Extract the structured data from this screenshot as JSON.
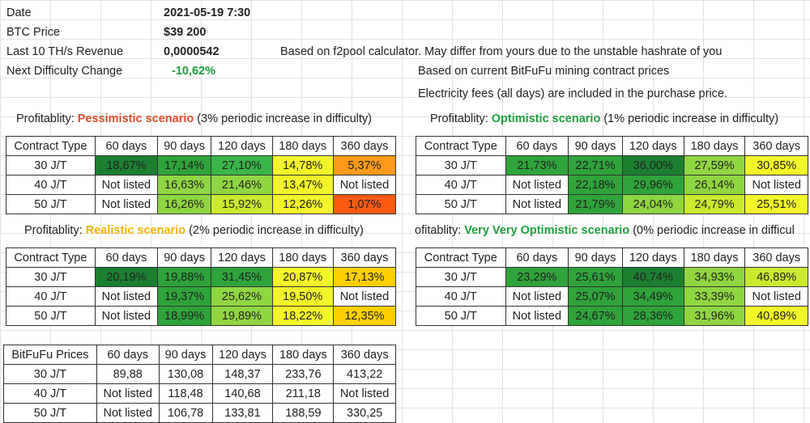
{
  "summary": {
    "date_label": "Date",
    "date_value": "2021-05-19 7:30",
    "btc_label": "BTC Price",
    "btc_value": "$39 200",
    "rev_label": "Last 10 TH/s Revenue",
    "rev_value": "0,0000542",
    "diff_label": "Next Difficulty Change",
    "diff_value": "-10,62%",
    "note1": "Based on f2pool calculator. May differ from yours due to the unstable hashrate of you",
    "note2": "Based on current BitFuFu mining contract prices",
    "note3": "Electricity fees (all days) are included in the purchase price."
  },
  "colors": {
    "dark_green": "#1b7f2f",
    "mid_green": "#2fa33c",
    "green": "#39b54a",
    "light_green": "#8fd641",
    "lime": "#c9ea2f",
    "yellow": "#f3f52a",
    "yellow_orange": "#ffd000",
    "orange": "#ff9a1a",
    "red_orange": "#ff5a14"
  },
  "columns": [
    "Contract Type",
    "60 days",
    "90 days",
    "120 days",
    "180 days",
    "360 days"
  ],
  "price_columns": [
    "BitFuFu Prices",
    "60 days",
    "90 days",
    "120 days",
    "180 days",
    "360 days"
  ],
  "pessimistic": {
    "prefix": "Profitablity: ",
    "name": "Pessimistic scenario",
    "suffix": " (3% periodic increase in difficulty)",
    "rows": [
      {
        "label": "30 J/T",
        "cells": [
          [
            "18,67%",
            "dark_green"
          ],
          [
            "17,14%",
            "mid_green"
          ],
          [
            "27,10%",
            "green"
          ],
          [
            "14,78%",
            "yellow"
          ],
          [
            "5,37%",
            "orange"
          ]
        ]
      },
      {
        "label": "40 J/T",
        "cells": [
          [
            "Not listed",
            "none"
          ],
          [
            "16,63%",
            "light_green"
          ],
          [
            "21,46%",
            "light_green"
          ],
          [
            "13,47%",
            "yellow"
          ],
          [
            "Not listed",
            "none"
          ]
        ]
      },
      {
        "label": "50 J/T",
        "cells": [
          [
            "Not listed",
            "none"
          ],
          [
            "16,26%",
            "light_green"
          ],
          [
            "15,92%",
            "lime"
          ],
          [
            "12,26%",
            "yellow"
          ],
          [
            "1,07%",
            "red_orange"
          ]
        ]
      }
    ]
  },
  "optimistic": {
    "prefix": "Profitablity: ",
    "name": "Optimistic scenario",
    "suffix": " (1% periodic increase in difficulty)",
    "rows": [
      {
        "label": "30 J/T",
        "cells": [
          [
            "21,73%",
            "mid_green"
          ],
          [
            "22,71%",
            "mid_green"
          ],
          [
            "36,00%",
            "dark_green"
          ],
          [
            "27,59%",
            "light_green"
          ],
          [
            "30,85%",
            "yellow"
          ]
        ]
      },
      {
        "label": "40 J/T",
        "cells": [
          [
            "Not listed",
            "none"
          ],
          [
            "22,18%",
            "mid_green"
          ],
          [
            "29,96%",
            "mid_green"
          ],
          [
            "26,14%",
            "light_green"
          ],
          [
            "Not listed",
            "none"
          ]
        ]
      },
      {
        "label": "50 J/T",
        "cells": [
          [
            "Not listed",
            "none"
          ],
          [
            "21,79%",
            "mid_green"
          ],
          [
            "24,04%",
            "light_green"
          ],
          [
            "24,79%",
            "lime"
          ],
          [
            "25,51%",
            "yellow"
          ]
        ]
      }
    ]
  },
  "realistic": {
    "prefix": "Profitablity: ",
    "name": "Realistic scenario",
    "suffix": " (2% periodic increase in difficulty)",
    "rows": [
      {
        "label": "30 J/T",
        "cells": [
          [
            "20,19%",
            "dark_green"
          ],
          [
            "19,88%",
            "mid_green"
          ],
          [
            "31,45%",
            "mid_green"
          ],
          [
            "20,87%",
            "yellow"
          ],
          [
            "17,13%",
            "yellow_orange"
          ]
        ]
      },
      {
        "label": "40 J/T",
        "cells": [
          [
            "Not listed",
            "none"
          ],
          [
            "19,37%",
            "mid_green"
          ],
          [
            "25,62%",
            "light_green"
          ],
          [
            "19,50%",
            "yellow"
          ],
          [
            "Not listed",
            "none"
          ]
        ]
      },
      {
        "label": "50 J/T",
        "cells": [
          [
            "Not listed",
            "none"
          ],
          [
            "18,99%",
            "mid_green"
          ],
          [
            "19,89%",
            "light_green"
          ],
          [
            "18,22%",
            "yellow"
          ],
          [
            "12,35%",
            "yellow_orange"
          ]
        ]
      }
    ]
  },
  "veryoptimistic": {
    "prefix": "ofitablity: ",
    "name": "Very Very Optimistic scenario",
    "suffix": " (0% periodic increase in difficul",
    "rows": [
      {
        "label": "30 J/T",
        "cells": [
          [
            "23,29%",
            "mid_green"
          ],
          [
            "25,61%",
            "mid_green"
          ],
          [
            "40,74%",
            "dark_green"
          ],
          [
            "34,93%",
            "light_green"
          ],
          [
            "46,89%",
            "lime"
          ]
        ]
      },
      {
        "label": "40 J/T",
        "cells": [
          [
            "Not listed",
            "none"
          ],
          [
            "25,07%",
            "mid_green"
          ],
          [
            "34,49%",
            "mid_green"
          ],
          [
            "33,39%",
            "light_green"
          ],
          [
            "Not listed",
            "none"
          ]
        ]
      },
      {
        "label": "50 J/T",
        "cells": [
          [
            "Not listed",
            "none"
          ],
          [
            "24,67%",
            "mid_green"
          ],
          [
            "28,36%",
            "mid_green"
          ],
          [
            "31,96%",
            "light_green"
          ],
          [
            "40,89%",
            "yellow"
          ]
        ]
      }
    ]
  },
  "prices": {
    "rows": [
      {
        "label": "30 J/T",
        "cells": [
          "89,88",
          "130,08",
          "148,37",
          "233,76",
          "413,22"
        ]
      },
      {
        "label": "40 J/T",
        "cells": [
          "Not listed",
          "118,48",
          "140,68",
          "211,18",
          "Not listed"
        ]
      },
      {
        "label": "50 J/T",
        "cells": [
          "Not listed",
          "106,78",
          "133,81",
          "188,59",
          "330,25"
        ]
      }
    ]
  }
}
